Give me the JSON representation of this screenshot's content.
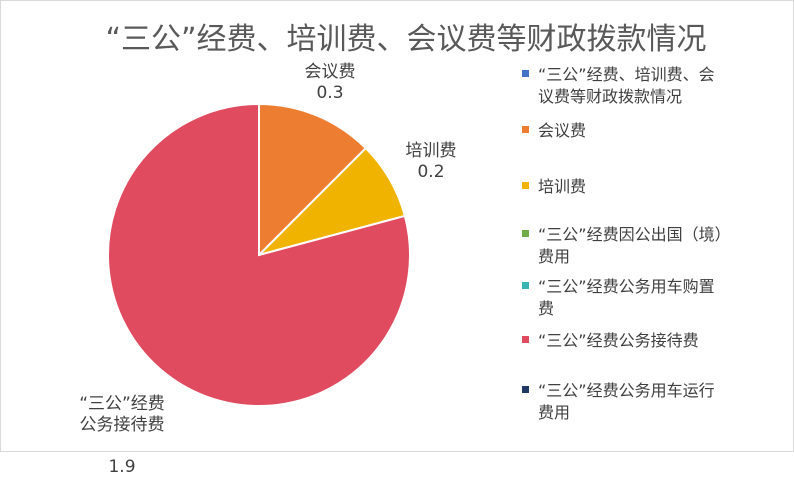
{
  "chart_data": {
    "type": "pie",
    "title": "“三公”经费、培训费、会议费等财政拨款情况",
    "categories": [
      "“三公”经费、培训费、会议费等财政拨款情况",
      "会议费",
      "培训费",
      "“三公”经费因公出国（境）费用",
      "“三公”经费公务用车购置费",
      "“三公”经费公务接待费",
      "“三公”经费公务用车运行费用"
    ],
    "values": [
      0,
      0.3,
      0.2,
      0,
      0,
      1.9,
      0
    ],
    "colors": [
      "#4472c4",
      "#ed7d31",
      "#f0b400",
      "#70ad47",
      "#36b3b3",
      "#e04b60",
      "#203864"
    ],
    "data_labels": [
      {
        "name": "会议费",
        "value": "0.3"
      },
      {
        "name": "培训费",
        "value": "0.2"
      },
      {
        "name": "“三公”经费\n公务接待费",
        "value": "1.9"
      }
    ],
    "legend": {
      "placement": "right",
      "entries": [
        "“三公”经费、培训费、会\n议费等财政拨款情况",
        "会议费",
        "培训费",
        "“三公”经费因公出国（境）\n费用",
        "“三公”经费公务用车购置\n费",
        "“三公”经费公务接待费",
        "“三公”经费公务用车运行\n费用"
      ]
    }
  }
}
